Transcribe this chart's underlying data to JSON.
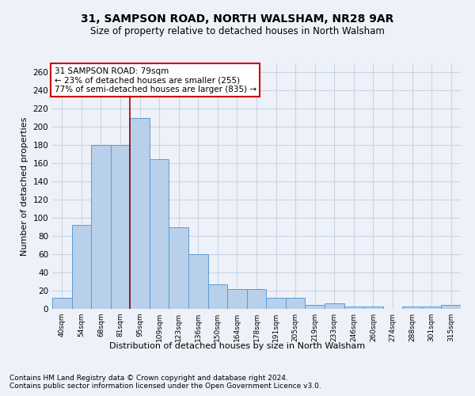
{
  "title1": "31, SAMPSON ROAD, NORTH WALSHAM, NR28 9AR",
  "title2": "Size of property relative to detached houses in North Walsham",
  "xlabel": "Distribution of detached houses by size in North Walsham",
  "ylabel": "Number of detached properties",
  "footer1": "Contains HM Land Registry data © Crown copyright and database right 2024.",
  "footer2": "Contains public sector information licensed under the Open Government Licence v3.0.",
  "annotation_title": "31 SAMPSON ROAD: 79sqm",
  "annotation_line1": "← 23% of detached houses are smaller (255)",
  "annotation_line2": "77% of semi-detached houses are larger (835) →",
  "bar_color": "#b8d0ea",
  "bar_edge_color": "#5b9bd5",
  "grid_color": "#c8d4e8",
  "vline_color": "#990000",
  "annotation_box_color": "#ffffff",
  "annotation_box_edge": "#cc0000",
  "categories": [
    "40sqm",
    "54sqm",
    "68sqm",
    "81sqm",
    "95sqm",
    "109sqm",
    "123sqm",
    "136sqm",
    "150sqm",
    "164sqm",
    "178sqm",
    "191sqm",
    "205sqm",
    "219sqm",
    "233sqm",
    "246sqm",
    "260sqm",
    "274sqm",
    "288sqm",
    "301sqm",
    "315sqm"
  ],
  "values": [
    12,
    92,
    180,
    180,
    210,
    165,
    90,
    60,
    27,
    22,
    22,
    12,
    12,
    4,
    6,
    3,
    3,
    0,
    3,
    3,
    4
  ],
  "vline_x_idx": 3.5,
  "ylim": [
    0,
    270
  ],
  "yticks": [
    0,
    20,
    40,
    60,
    80,
    100,
    120,
    140,
    160,
    180,
    200,
    220,
    240,
    260
  ],
  "background_color": "#eef2f8"
}
